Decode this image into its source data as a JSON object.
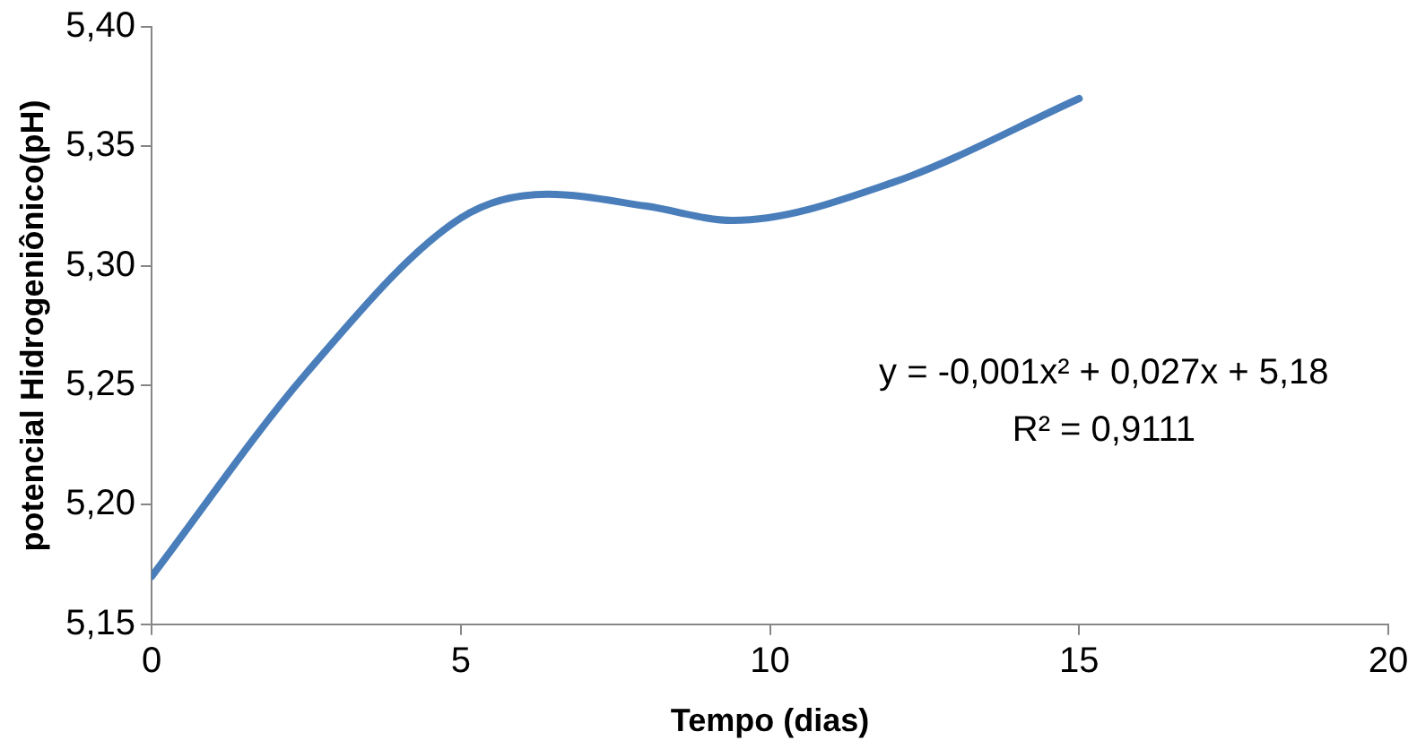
{
  "chart_data": {
    "type": "line",
    "xlabel": "Tempo (dias)",
    "ylabel": "potencial Hidrogeniônico(pH)",
    "series": [
      {
        "color": "#4a7ebb",
        "x": [
          0,
          2.5,
          5,
          6.4,
          8,
          9.4,
          12,
          15
        ],
        "values": [
          5.17,
          5.255,
          5.32,
          5.33,
          5.325,
          5.319,
          5.335,
          5.37
        ]
      }
    ],
    "xlim": [
      0,
      20
    ],
    "xticks": [
      0,
      5,
      10,
      15,
      20
    ],
    "ylim": [
      5.15,
      5.4
    ],
    "yticks": [
      {
        "value": 5.15,
        "label": "5,15"
      },
      {
        "value": 5.2,
        "label": "5,20"
      },
      {
        "value": 5.25,
        "label": "5,25"
      },
      {
        "value": 5.3,
        "label": "5,30"
      },
      {
        "value": 5.35,
        "label": "5,35"
      },
      {
        "value": 5.4,
        "label": "5,40"
      }
    ],
    "annotations": [
      "y = -0,001x² + 0,027x + 5,18",
      "R² = 0,9111"
    ],
    "grid": false,
    "legend": false,
    "marker": "none",
    "line_style": "solid"
  }
}
